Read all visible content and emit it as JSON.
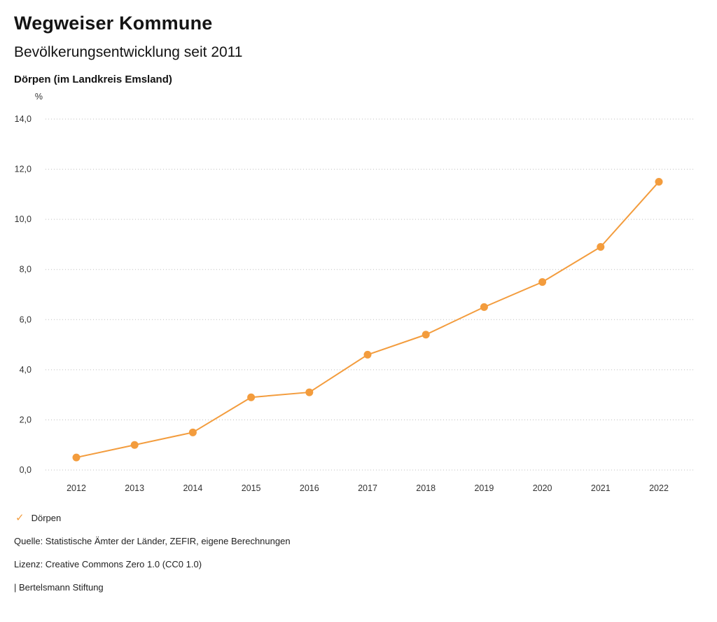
{
  "header": {
    "title": "Wegweiser Kommune",
    "subtitle": "Bevölkerungsentwicklung seit 2011",
    "location": "Dörpen (im Landkreis Emsland)"
  },
  "legend": {
    "items": [
      {
        "label": "Dörpen",
        "checked": true,
        "color": "#f39c3d"
      }
    ]
  },
  "footer": {
    "source": "Quelle: Statistische Ämter der Länder, ZEFIR, eigene Berechnungen",
    "license": "Lizenz: Creative Commons Zero 1.0 (CC0 1.0)",
    "attribution": "| Bertelsmann Stiftung"
  },
  "chart_data": {
    "type": "line",
    "title": "Bevölkerungsentwicklung seit 2011",
    "subtitle": "Dörpen (im Landkreis Emsland)",
    "ylabel": "%",
    "x": [
      2012,
      2013,
      2014,
      2015,
      2016,
      2017,
      2018,
      2019,
      2020,
      2021,
      2022
    ],
    "series": [
      {
        "name": "Dörpen",
        "color": "#f39c3d",
        "values": [
          0.5,
          1.0,
          1.5,
          2.9,
          3.1,
          4.6,
          5.4,
          6.5,
          7.5,
          8.9,
          11.5
        ]
      }
    ],
    "ylim": [
      0,
      14
    ],
    "ytick_step": 2,
    "ytick_labels": [
      "0,0",
      "2,0",
      "4,0",
      "6,0",
      "8,0",
      "10,0",
      "12,0",
      "14,0"
    ],
    "grid": "horizontal-dotted",
    "legend_position": "bottom-left"
  }
}
